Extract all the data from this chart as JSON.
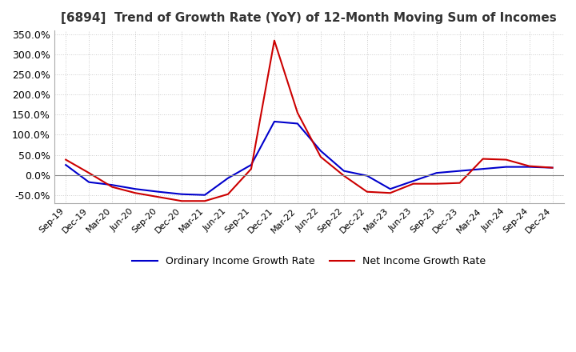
{
  "title": "[6894]  Trend of Growth Rate (YoY) of 12-Month Moving Sum of Incomes",
  "title_fontsize": 11,
  "background_color": "#ffffff",
  "plot_bg_color": "#ffffff",
  "grid_color": "#cccccc",
  "legend_labels": [
    "Ordinary Income Growth Rate",
    "Net Income Growth Rate"
  ],
  "legend_colors": [
    "#0000cc",
    "#cc0000"
  ],
  "x_labels": [
    "Sep-19",
    "Dec-19",
    "Mar-20",
    "Jun-20",
    "Sep-20",
    "Dec-20",
    "Mar-21",
    "Jun-21",
    "Sep-21",
    "Dec-21",
    "Mar-22",
    "Jun-22",
    "Sep-22",
    "Dec-22",
    "Mar-23",
    "Jun-23",
    "Sep-23",
    "Dec-23",
    "Mar-24",
    "Jun-24",
    "Sep-24",
    "Dec-24"
  ],
  "ordinary_income": [
    0.25,
    -0.18,
    -0.25,
    -0.35,
    -0.42,
    -0.48,
    -0.5,
    -0.08,
    0.25,
    1.33,
    1.28,
    0.6,
    0.1,
    -0.02,
    -0.35,
    -0.15,
    0.05,
    0.1,
    0.15,
    0.2,
    0.2,
    0.18
  ],
  "net_income": [
    0.38,
    0.05,
    -0.3,
    -0.45,
    -0.55,
    -0.65,
    -0.65,
    -0.48,
    0.15,
    3.35,
    1.55,
    0.45,
    -0.02,
    -0.42,
    -0.45,
    -0.22,
    -0.22,
    -0.2,
    0.4,
    0.38,
    0.22,
    0.18
  ],
  "ylim": [
    -0.7,
    3.6
  ],
  "yticks": [
    -0.5,
    0.0,
    0.5,
    1.0,
    1.5,
    2.0,
    2.5,
    3.0,
    3.5
  ],
  "zero_line_color": "#888888",
  "line_width": 1.5
}
